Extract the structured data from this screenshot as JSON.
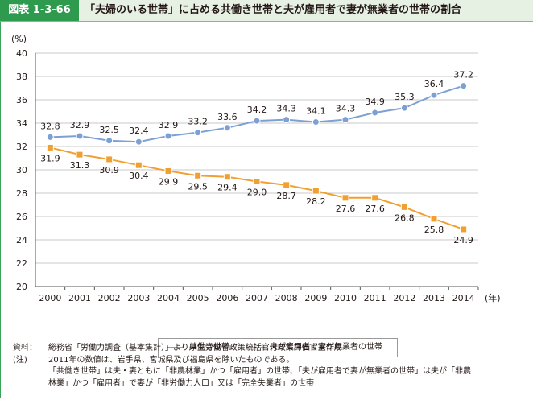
{
  "header": {
    "figure_label": "図表 1-3-66",
    "title": "「夫婦のいる世帯」に占める共働き世帯と夫が雇用者で妻が無業者の世帯の割合"
  },
  "chart_data": {
    "type": "line",
    "ylabel": "(%)",
    "x_unit": "(年)",
    "ylim": [
      20,
      40
    ],
    "yticks": [
      20,
      22,
      24,
      26,
      28,
      30,
      32,
      34,
      36,
      38,
      40
    ],
    "grid": true,
    "categories": [
      "2000",
      "2001",
      "2002",
      "2003",
      "2004",
      "2005",
      "2006",
      "2007",
      "2008",
      "2009",
      "2010",
      "2011",
      "2012",
      "2013",
      "2014"
    ],
    "series": [
      {
        "name": "共働き世帯",
        "color": "#7da0d4",
        "marker": "circle",
        "labels_above": true,
        "values": [
          32.8,
          32.9,
          32.5,
          32.4,
          32.9,
          33.2,
          33.6,
          34.2,
          34.3,
          34.1,
          34.3,
          34.9,
          35.3,
          36.4,
          37.2
        ]
      },
      {
        "name": "夫が雇用者で妻が無業者の世帯",
        "color": "#f0a030",
        "marker": "square",
        "labels_above": false,
        "values": [
          31.9,
          31.3,
          30.9,
          30.4,
          29.9,
          29.5,
          29.4,
          29.0,
          28.7,
          28.2,
          27.6,
          27.6,
          26.8,
          25.8,
          24.9
        ]
      }
    ],
    "legend_position": "bottom-center"
  },
  "notes": {
    "source_key": "資料：",
    "source_text": "総務省「労働力調査（基本集計）」より厚生労働省政策統括官付政策評価官室作成",
    "note_key": "(注)",
    "note_line1": "2011年の数値は、岩手県、宮城県及び福島県を除いたものである。",
    "note_line2": "「共働き世帯」は夫・妻ともに「非農林業」かつ「雇用者」の世帯、「夫が雇用者で妻が無業者の世帯」は夫が「非農",
    "note_line3": "林業」かつ「雇用者」で妻が「非労働力人口」又は「完全失業者」の世帯"
  }
}
